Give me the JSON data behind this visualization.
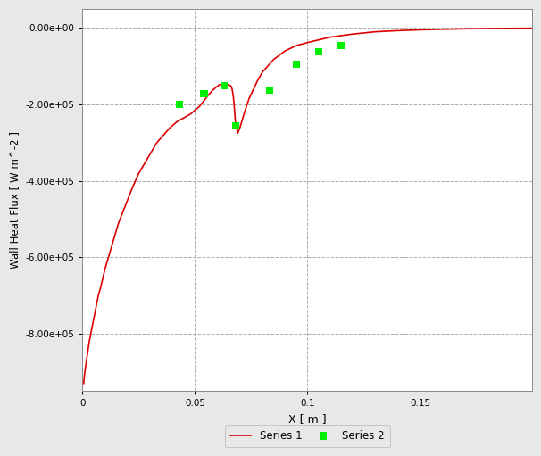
{
  "title": "",
  "xlabel": "X [ m ]",
  "ylabel": "Wall Heat Flux [ W m^-2 ]",
  "xlim": [
    0,
    0.2
  ],
  "ylim": [
    -950000.0,
    50000.0
  ],
  "yticks": [
    0,
    -200000.0,
    -400000.0,
    -600000.0,
    -800000.0
  ],
  "xticks": [
    0,
    0.05,
    0.1,
    0.15
  ],
  "bg_color": "#e8e8e8",
  "plot_bg_color": "#ffffff",
  "grid_color": "#aaaaaa",
  "line_color": "#dd0000",
  "scatter_color": "#00ee00",
  "legend_labels": [
    "Series 1",
    "Series 2"
  ],
  "series1_x": [
    0.0005,
    0.001,
    0.002,
    0.003,
    0.004,
    0.005,
    0.006,
    0.007,
    0.008,
    0.009,
    0.01,
    0.012,
    0.014,
    0.016,
    0.018,
    0.02,
    0.022,
    0.025,
    0.028,
    0.03,
    0.033,
    0.036,
    0.039,
    0.042,
    0.045,
    0.048,
    0.05,
    0.052,
    0.054,
    0.056,
    0.058,
    0.06,
    0.061,
    0.062,
    0.063,
    0.064,
    0.065,
    0.066,
    0.0665,
    0.067,
    0.0675,
    0.068,
    0.069,
    0.07,
    0.071,
    0.072,
    0.074,
    0.076,
    0.078,
    0.08,
    0.085,
    0.09,
    0.095,
    0.1,
    0.11,
    0.12,
    0.13,
    0.14,
    0.15,
    0.16,
    0.17,
    0.18,
    0.19,
    0.2
  ],
  "series1_y": [
    -930000.0,
    -900000.0,
    -860000.0,
    -820000.0,
    -790000.0,
    -760000.0,
    -730000.0,
    -700000.0,
    -680000.0,
    -655000.0,
    -630000.0,
    -590000.0,
    -550000.0,
    -510000.0,
    -480000.0,
    -450000.0,
    -420000.0,
    -380000.0,
    -350000.0,
    -330000.0,
    -300000.0,
    -280000.0,
    -260000.0,
    -245000.0,
    -235000.0,
    -225000.0,
    -215000.0,
    -205000.0,
    -190000.0,
    -175000.0,
    -162000.0,
    -152000.0,
    -148000.0,
    -148000.0,
    -147000.0,
    -147000.0,
    -149000.0,
    -152000.0,
    -160000.0,
    -178000.0,
    -210000.0,
    -250000.0,
    -275000.0,
    -260000.0,
    -240000.0,
    -220000.0,
    -185000.0,
    -160000.0,
    -135000.0,
    -115000.0,
    -82000.0,
    -60000.0,
    -46000.0,
    -38000.0,
    -24000.0,
    -16000.0,
    -10000.0,
    -7000.0,
    -4800.0,
    -3300.0,
    -2200.0,
    -1500.0,
    -1000.0,
    -600.0
  ],
  "series2_x": [
    0.043,
    0.054,
    0.063,
    0.068,
    0.083,
    0.095,
    0.105,
    0.115
  ],
  "series2_y": [
    -200000.0,
    -172000.0,
    -150000.0,
    -255000.0,
    -162000.0,
    -95000.0,
    -62000.0,
    -45000.0
  ]
}
